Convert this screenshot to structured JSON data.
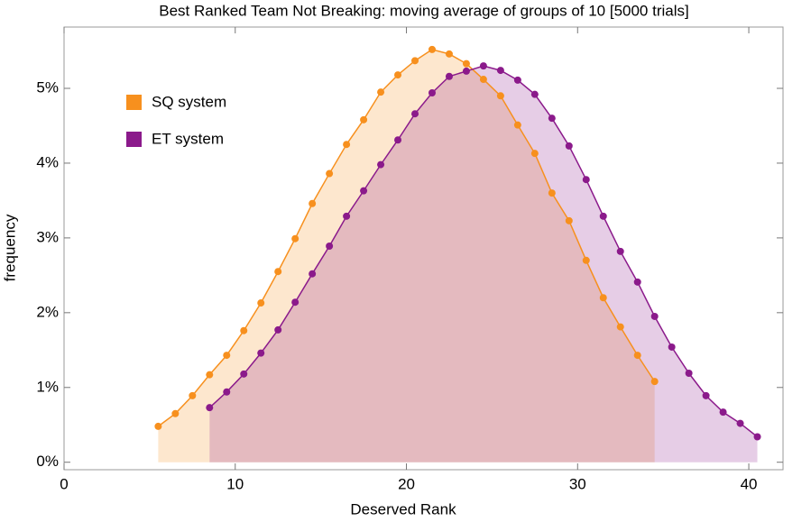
{
  "chart_data": {
    "type": "line",
    "title": "Best Ranked Team Not Breaking: moving average of groups of 10   [5000 trials]",
    "x_label": "Deserved Rank",
    "y_label": "frequency",
    "xlim": [
      0,
      42
    ],
    "ylim": [
      -0.1,
      5.82
    ],
    "xticks": [
      0,
      10,
      20,
      30,
      40
    ],
    "yticks": [
      {
        "value": 0,
        "label": "0%"
      },
      {
        "value": 1,
        "label": "1%"
      },
      {
        "value": 2,
        "label": "2%"
      },
      {
        "value": 3,
        "label": "3%"
      },
      {
        "value": 4,
        "label": "4%"
      },
      {
        "value": 5,
        "label": "5%"
      }
    ],
    "legend": "top-left",
    "filled": true,
    "series": [
      {
        "name": "SQ system",
        "color": "#f7901e",
        "x": [
          5.5,
          6.5,
          7.5,
          8.5,
          9.5,
          10.5,
          11.5,
          12.5,
          13.5,
          14.5,
          15.5,
          16.5,
          17.5,
          18.5,
          19.5,
          20.5,
          21.5,
          22.5,
          23.5,
          24.5,
          25.5,
          26.5,
          27.5,
          28.5,
          29.5,
          30.5,
          31.5,
          32.5,
          33.5,
          34.5
        ],
        "values": [
          0.48,
          0.65,
          0.89,
          1.17,
          1.43,
          1.76,
          2.13,
          2.55,
          2.99,
          3.46,
          3.86,
          4.25,
          4.58,
          4.95,
          5.18,
          5.37,
          5.52,
          5.46,
          5.33,
          5.12,
          4.9,
          4.51,
          4.13,
          3.6,
          3.23,
          2.7,
          2.2,
          1.81,
          1.43,
          1.08
        ]
      },
      {
        "name": "ET system",
        "color": "#8b1a8b",
        "x": [
          8.5,
          9.5,
          10.5,
          11.5,
          12.5,
          13.5,
          14.5,
          15.5,
          16.5,
          17.5,
          18.5,
          19.5,
          20.5,
          21.5,
          22.5,
          23.5,
          24.5,
          25.5,
          26.5,
          27.5,
          28.5,
          29.5,
          30.5,
          31.5,
          32.5,
          33.5,
          34.5,
          35.5,
          36.5,
          37.5,
          38.5,
          39.5,
          40.5
        ],
        "values": [
          0.73,
          0.94,
          1.18,
          1.46,
          1.77,
          2.14,
          2.52,
          2.89,
          3.29,
          3.63,
          3.98,
          4.31,
          4.66,
          4.94,
          5.16,
          5.23,
          5.3,
          5.24,
          5.11,
          4.92,
          4.6,
          4.23,
          3.78,
          3.29,
          2.82,
          2.41,
          1.95,
          1.54,
          1.19,
          0.89,
          0.67,
          0.52,
          0.34
        ]
      }
    ]
  }
}
